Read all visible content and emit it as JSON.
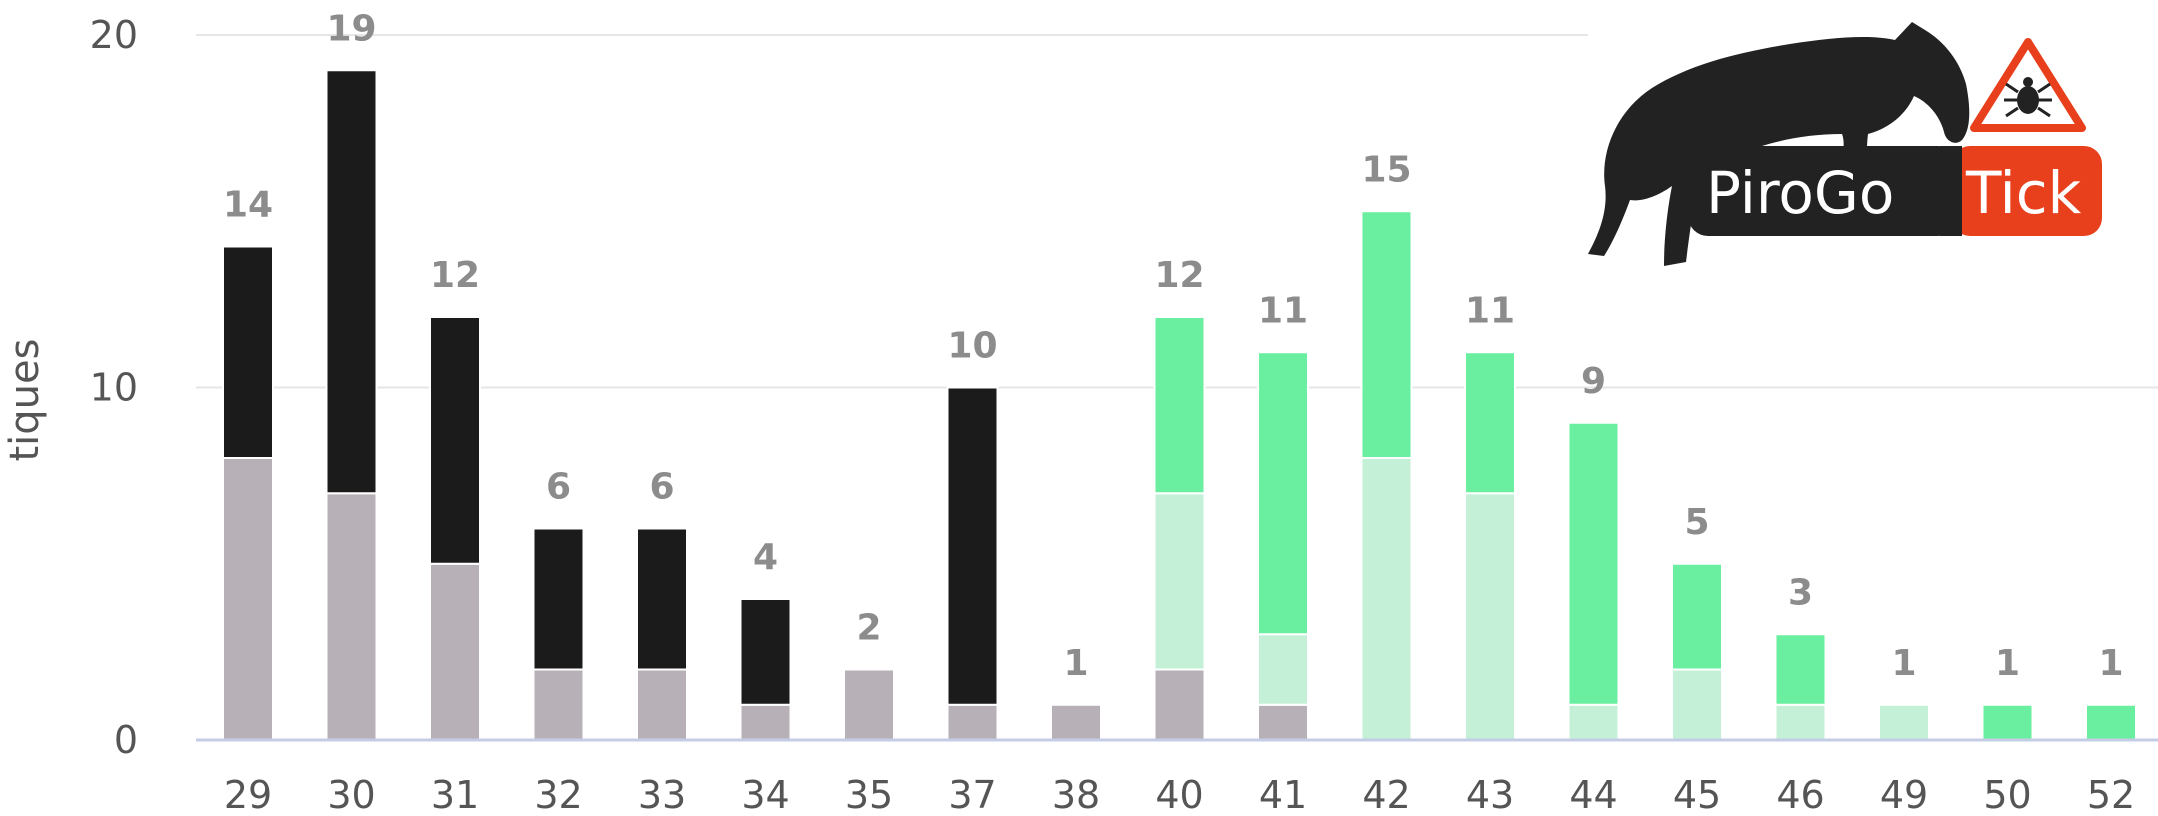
{
  "chart_data": {
    "type": "bar",
    "stacked": true,
    "title": "",
    "xlabel": "",
    "ylabel": "tiques",
    "ylim": [
      0,
      20
    ],
    "yticks": [
      0,
      10,
      20
    ],
    "grid": true,
    "categories": [
      "29",
      "30",
      "31",
      "32",
      "33",
      "34",
      "35",
      "37",
      "38",
      "40",
      "41",
      "42",
      "43",
      "44",
      "45",
      "46",
      "49",
      "50",
      "52"
    ],
    "totals": [
      14,
      19,
      12,
      6,
      6,
      4,
      2,
      10,
      1,
      12,
      11,
      15,
      11,
      9,
      5,
      3,
      1,
      1,
      1
    ],
    "series": [
      {
        "color": "#b7b0b7",
        "values": [
          8,
          7,
          5,
          2,
          2,
          1,
          2,
          1,
          1,
          2,
          1,
          0,
          0,
          0,
          0,
          0,
          0,
          0,
          0
        ]
      },
      {
        "color": "#c3f0d6",
        "values": [
          0,
          0,
          0,
          0,
          0,
          0,
          0,
          0,
          0,
          5,
          2,
          8,
          7,
          1,
          2,
          1,
          1,
          0,
          0
        ]
      },
      {
        "color": "#1b1b1b",
        "values": [
          6,
          12,
          7,
          4,
          4,
          3,
          0,
          9,
          0,
          0,
          0,
          0,
          0,
          0,
          0,
          0,
          0,
          0,
          0
        ]
      },
      {
        "color": "#69ef9f",
        "values": [
          0,
          0,
          0,
          0,
          0,
          0,
          0,
          0,
          0,
          5,
          8,
          7,
          4,
          8,
          3,
          2,
          0,
          1,
          1
        ]
      }
    ]
  },
  "logo": {
    "name_left": "PiroGo",
    "name_right": "Tick",
    "icons": [
      "horse-silhouette-icon",
      "tick-warning-icon"
    ],
    "colors": {
      "dark": "#222222",
      "accent": "#e8401c"
    }
  }
}
